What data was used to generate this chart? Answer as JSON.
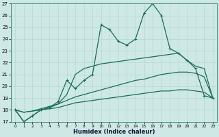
{
  "xlabel": "Humidex (Indice chaleur)",
  "bg_color": "#cde8e5",
  "line_color": "#1a6b5a",
  "grid_color": "#aed4d0",
  "ylim": [
    17,
    27
  ],
  "xlim": [
    0,
    23
  ],
  "yticks": [
    17,
    18,
    19,
    20,
    21,
    22,
    23,
    24,
    25,
    26,
    27
  ],
  "xticks": [
    0,
    1,
    2,
    3,
    4,
    5,
    6,
    7,
    8,
    9,
    10,
    11,
    12,
    13,
    14,
    15,
    16,
    17,
    18,
    19,
    20,
    21,
    22,
    23
  ],
  "x": [
    0,
    1,
    2,
    3,
    4,
    5,
    6,
    7,
    8,
    9,
    10,
    11,
    12,
    13,
    14,
    15,
    16,
    17,
    18,
    19,
    20,
    21,
    22,
    23
  ],
  "y_main": [
    18,
    17,
    17.5,
    18,
    18.2,
    18.7,
    20.5,
    19.8,
    20.5,
    21.0,
    25.2,
    24.8,
    23.8,
    23.5,
    24.0,
    26.2,
    27.0,
    26.0,
    23.2,
    22.8,
    22.2,
    21.5,
    19.2,
    19.0
  ],
  "y_line2": [
    18,
    17,
    17.5,
    18,
    18.2,
    18.5,
    19.3,
    21.0,
    21.5,
    21.7,
    21.9,
    22.0,
    22.1,
    22.2,
    22.3,
    22.4,
    22.5,
    22.6,
    22.7,
    22.8,
    22.2,
    21.7,
    21.5,
    19.0
  ],
  "y_line3": [
    18,
    17.8,
    17.9,
    18.1,
    18.3,
    18.5,
    18.8,
    19.1,
    19.3,
    19.5,
    19.7,
    19.9,
    20.1,
    20.3,
    20.5,
    20.6,
    20.8,
    21.0,
    21.1,
    21.2,
    21.2,
    21.1,
    20.8,
    19.0
  ],
  "y_line4": [
    18,
    17.8,
    17.9,
    18.0,
    18.1,
    18.2,
    18.4,
    18.6,
    18.7,
    18.8,
    18.9,
    19.0,
    19.1,
    19.2,
    19.3,
    19.4,
    19.5,
    19.6,
    19.6,
    19.7,
    19.7,
    19.6,
    19.5,
    19.0
  ],
  "line_width": 0.9,
  "marker_size": 3.5
}
